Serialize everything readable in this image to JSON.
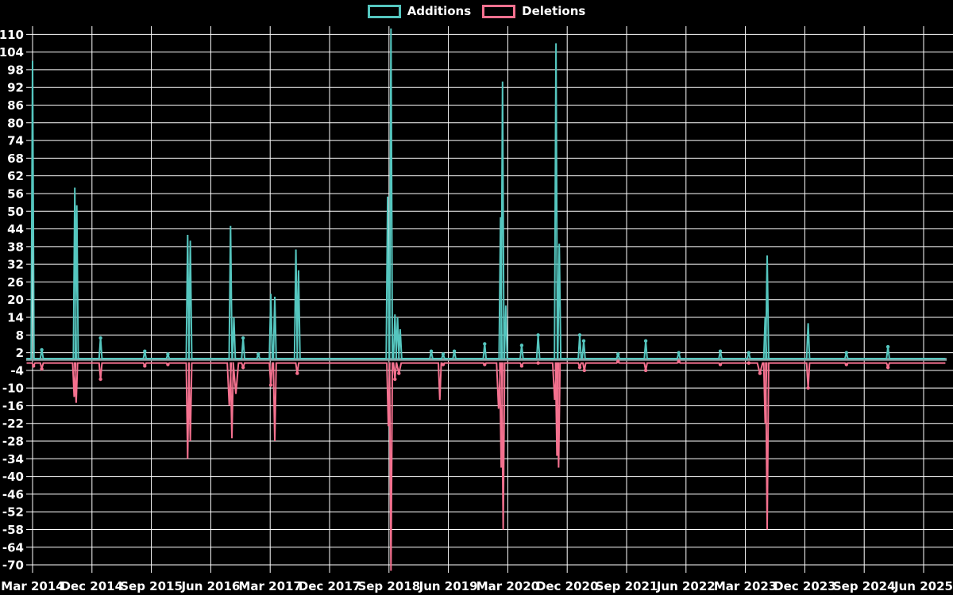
{
  "legend": {
    "additions_label": "Additions",
    "deletions_label": "Deletions"
  },
  "colors": {
    "background": "#000000",
    "grid": "#ffffff",
    "text": "#ffffff",
    "zero_line": "#8ca0a3",
    "additions": "#55c6bf",
    "deletions": "#f4718f"
  },
  "chart_data": {
    "type": "line",
    "title": "",
    "xlabel": "",
    "ylabel": "",
    "legend_position": "top-center",
    "grid": true,
    "y_axis": {
      "min": -70,
      "max": 110,
      "tick_step": 6,
      "ticks": [
        110,
        104,
        98,
        92,
        86,
        80,
        74,
        68,
        62,
        56,
        50,
        44,
        38,
        32,
        26,
        20,
        14,
        8,
        2,
        -4,
        -10,
        -16,
        -22,
        -28,
        -34,
        -40,
        -46,
        -52,
        -58,
        -64,
        -70
      ]
    },
    "x_axis": {
      "labels": [
        "Mar 2014",
        "Dec 2014",
        "Sep 2015",
        "Jun 2016",
        "Mar 2017",
        "Dec 2017",
        "Sep 2018",
        "Jun 2019",
        "Mar 2020",
        "Dec 2020",
        "Sep 2021",
        "Jun 2022",
        "Mar 2023",
        "Dec 2023",
        "Sep 2024",
        "Jun 2025"
      ],
      "months_per_label": 9,
      "span_months": 135,
      "start": "Mar 2014",
      "end": "Jun 2025"
    },
    "series": [
      {
        "name": "Additions",
        "color": "#55c6bf",
        "baseline": 0,
        "spikes": [
          [
            0.0,
            101
          ],
          [
            1.4,
            3
          ],
          [
            6.4,
            58
          ],
          [
            6.7,
            52
          ],
          [
            10.3,
            7
          ],
          [
            17.0,
            2.5
          ],
          [
            20.5,
            1.5
          ],
          [
            23.5,
            42
          ],
          [
            23.9,
            40
          ],
          [
            30.0,
            45
          ],
          [
            30.5,
            14
          ],
          [
            31.9,
            7
          ],
          [
            34.2,
            1.5
          ],
          [
            36.1,
            22
          ],
          [
            36.7,
            21
          ],
          [
            39.9,
            37
          ],
          [
            40.3,
            30
          ],
          [
            53.8,
            55
          ],
          [
            54.3,
            112
          ],
          [
            54.9,
            15
          ],
          [
            55.3,
            14
          ],
          [
            55.7,
            10
          ],
          [
            60.4,
            2.5
          ],
          [
            62.2,
            1.5
          ],
          [
            63.9,
            2.5
          ],
          [
            68.5,
            5
          ],
          [
            70.9,
            48
          ],
          [
            71.2,
            94
          ],
          [
            71.7,
            18
          ],
          [
            74.1,
            4.5
          ],
          [
            76.6,
            8
          ],
          [
            79.3,
            107
          ],
          [
            79.8,
            39
          ],
          [
            82.9,
            8
          ],
          [
            83.5,
            6
          ],
          [
            88.7,
            1.5
          ],
          [
            92.9,
            6
          ],
          [
            97.9,
            2
          ],
          [
            104.2,
            2.5
          ],
          [
            108.5,
            2
          ],
          [
            111.0,
            14
          ],
          [
            111.3,
            35
          ],
          [
            117.5,
            12
          ],
          [
            123.3,
            2
          ],
          [
            129.6,
            4
          ]
        ]
      },
      {
        "name": "Deletions",
        "color": "#f4718f",
        "baseline": -1.5,
        "spikes": [
          [
            0.15,
            -2.5
          ],
          [
            1.4,
            -3.5
          ],
          [
            6.3,
            -13
          ],
          [
            6.6,
            -15
          ],
          [
            10.3,
            -7
          ],
          [
            17.0,
            -2.5
          ],
          [
            20.5,
            -2
          ],
          [
            23.5,
            -34
          ],
          [
            23.9,
            -28
          ],
          [
            29.8,
            -16,
            0.3
          ],
          [
            30.2,
            -27
          ],
          [
            30.8,
            -12,
            0.4
          ],
          [
            31.9,
            -3
          ],
          [
            36.1,
            -9
          ],
          [
            36.7,
            -28
          ],
          [
            40.1,
            -5
          ],
          [
            53.9,
            -23
          ],
          [
            54.3,
            -72
          ],
          [
            54.9,
            -7
          ],
          [
            55.5,
            -5,
            0.35
          ],
          [
            61.7,
            -14
          ],
          [
            62.2,
            -2
          ],
          [
            68.5,
            -2
          ],
          [
            70.6,
            -17,
            0.3
          ],
          [
            71.0,
            -37
          ],
          [
            71.3,
            -58
          ],
          [
            74.1,
            -2.5
          ],
          [
            76.6,
            -1.5
          ],
          [
            79.1,
            -14,
            0.3
          ],
          [
            79.45,
            -33
          ],
          [
            79.7,
            -37
          ],
          [
            82.9,
            -3
          ],
          [
            83.6,
            -4
          ],
          [
            88.7,
            -1
          ],
          [
            92.9,
            -4
          ],
          [
            97.9,
            -1
          ],
          [
            104.2,
            -2
          ],
          [
            108.5,
            -1.5
          ],
          [
            110.2,
            -5,
            0.4
          ],
          [
            111.0,
            -22
          ],
          [
            111.3,
            -58
          ],
          [
            117.5,
            -10
          ],
          [
            123.3,
            -2
          ],
          [
            129.6,
            -3
          ]
        ]
      }
    ]
  }
}
